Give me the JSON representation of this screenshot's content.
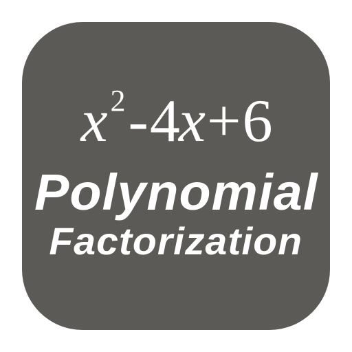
{
  "icon": {
    "background_color": "#5b5a56",
    "text_color": "#ffffff",
    "border_radius": 88,
    "size": 448
  },
  "formula": {
    "text": "x²-4x+6",
    "var1": "x",
    "exp": "2",
    "op1": "-",
    "coef": "4",
    "var2": "x",
    "op2": "+",
    "const": "6",
    "font_family": "Georgia, serif",
    "font_style": "italic",
    "font_size": 88,
    "exponent_font_size": 44
  },
  "title": {
    "line1": "Polynomial",
    "line2": "Factorization",
    "font_family": "Impact, Arial Black, sans-serif",
    "font_weight": 900,
    "font_style": "italic",
    "line1_font_size": 74,
    "line2_font_size": 56
  }
}
